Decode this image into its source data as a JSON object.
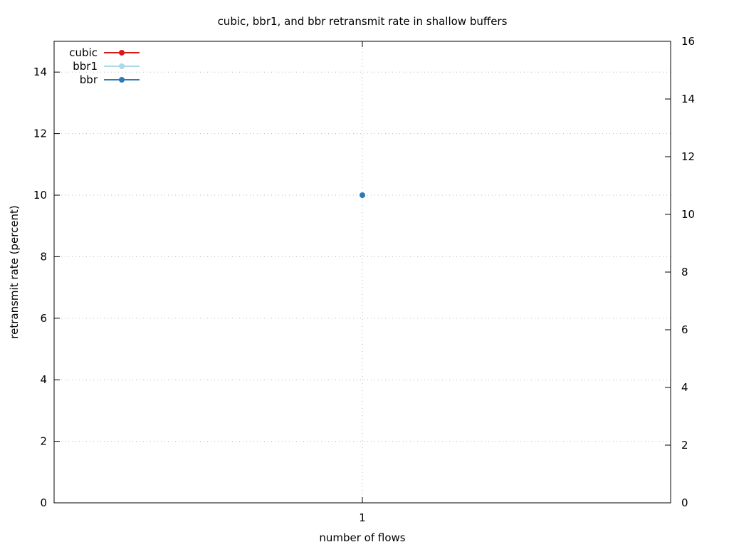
{
  "chart_data": {
    "type": "line",
    "title": "cubic, bbr1, and bbr retransmit rate in shallow buffers",
    "xlabel": "number of flows",
    "ylabel": "retransmit rate (percent)",
    "categories": [
      "1"
    ],
    "ylim": [
      0,
      15
    ],
    "y2lim": [
      0,
      16
    ],
    "yticks": [
      "0",
      "2",
      "4",
      "6",
      "8",
      "10",
      "12",
      "14"
    ],
    "y2ticks": [
      "0",
      "2",
      "4",
      "6",
      "8",
      "10",
      "12",
      "14",
      "16"
    ],
    "grid": true,
    "legend_position": "top-left",
    "series": [
      {
        "name": "cubic",
        "color": "#d7191c",
        "values": [
          null
        ]
      },
      {
        "name": "bbr1",
        "color": "#abd9e9",
        "values": [
          null
        ]
      },
      {
        "name": "bbr",
        "color": "#2c7bb6",
        "values": [
          10
        ]
      }
    ]
  }
}
